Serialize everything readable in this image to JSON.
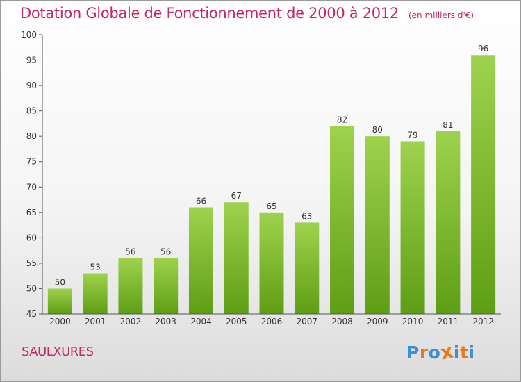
{
  "header": {
    "title": "Dotation Globale de Fonctionnement de 2000 à 2012",
    "subtitle": "(en milliers d'€)"
  },
  "footer": {
    "commune": "SAULXURES",
    "logo": {
      "letters": [
        "P",
        "r",
        "o",
        "x",
        "i",
        "t",
        "i"
      ],
      "colors": [
        "#3b8fd6",
        "#e8791f",
        "#3b8fd6",
        "#e8791f",
        "#3b8fd6",
        "#e8791f",
        "#3b8fd6"
      ]
    }
  },
  "chart_data": {
    "type": "bar",
    "categories": [
      "2000",
      "2001",
      "2002",
      "2003",
      "2004",
      "2005",
      "2006",
      "2007",
      "2008",
      "2009",
      "2010",
      "2011",
      "2012"
    ],
    "values": [
      50,
      53,
      56,
      56,
      66,
      67,
      65,
      63,
      82,
      80,
      79,
      81,
      96
    ],
    "title": "Dotation Globale de Fonctionnement de 2000 à 2012",
    "ylim": [
      45,
      100
    ],
    "yticks": [
      45,
      50,
      55,
      60,
      65,
      70,
      75,
      80,
      85,
      90,
      95,
      100
    ],
    "grid": false,
    "bar_color_top": "#9fd24e",
    "bar_color_bottom": "#5e9e14",
    "title_color": "#c4266b"
  }
}
